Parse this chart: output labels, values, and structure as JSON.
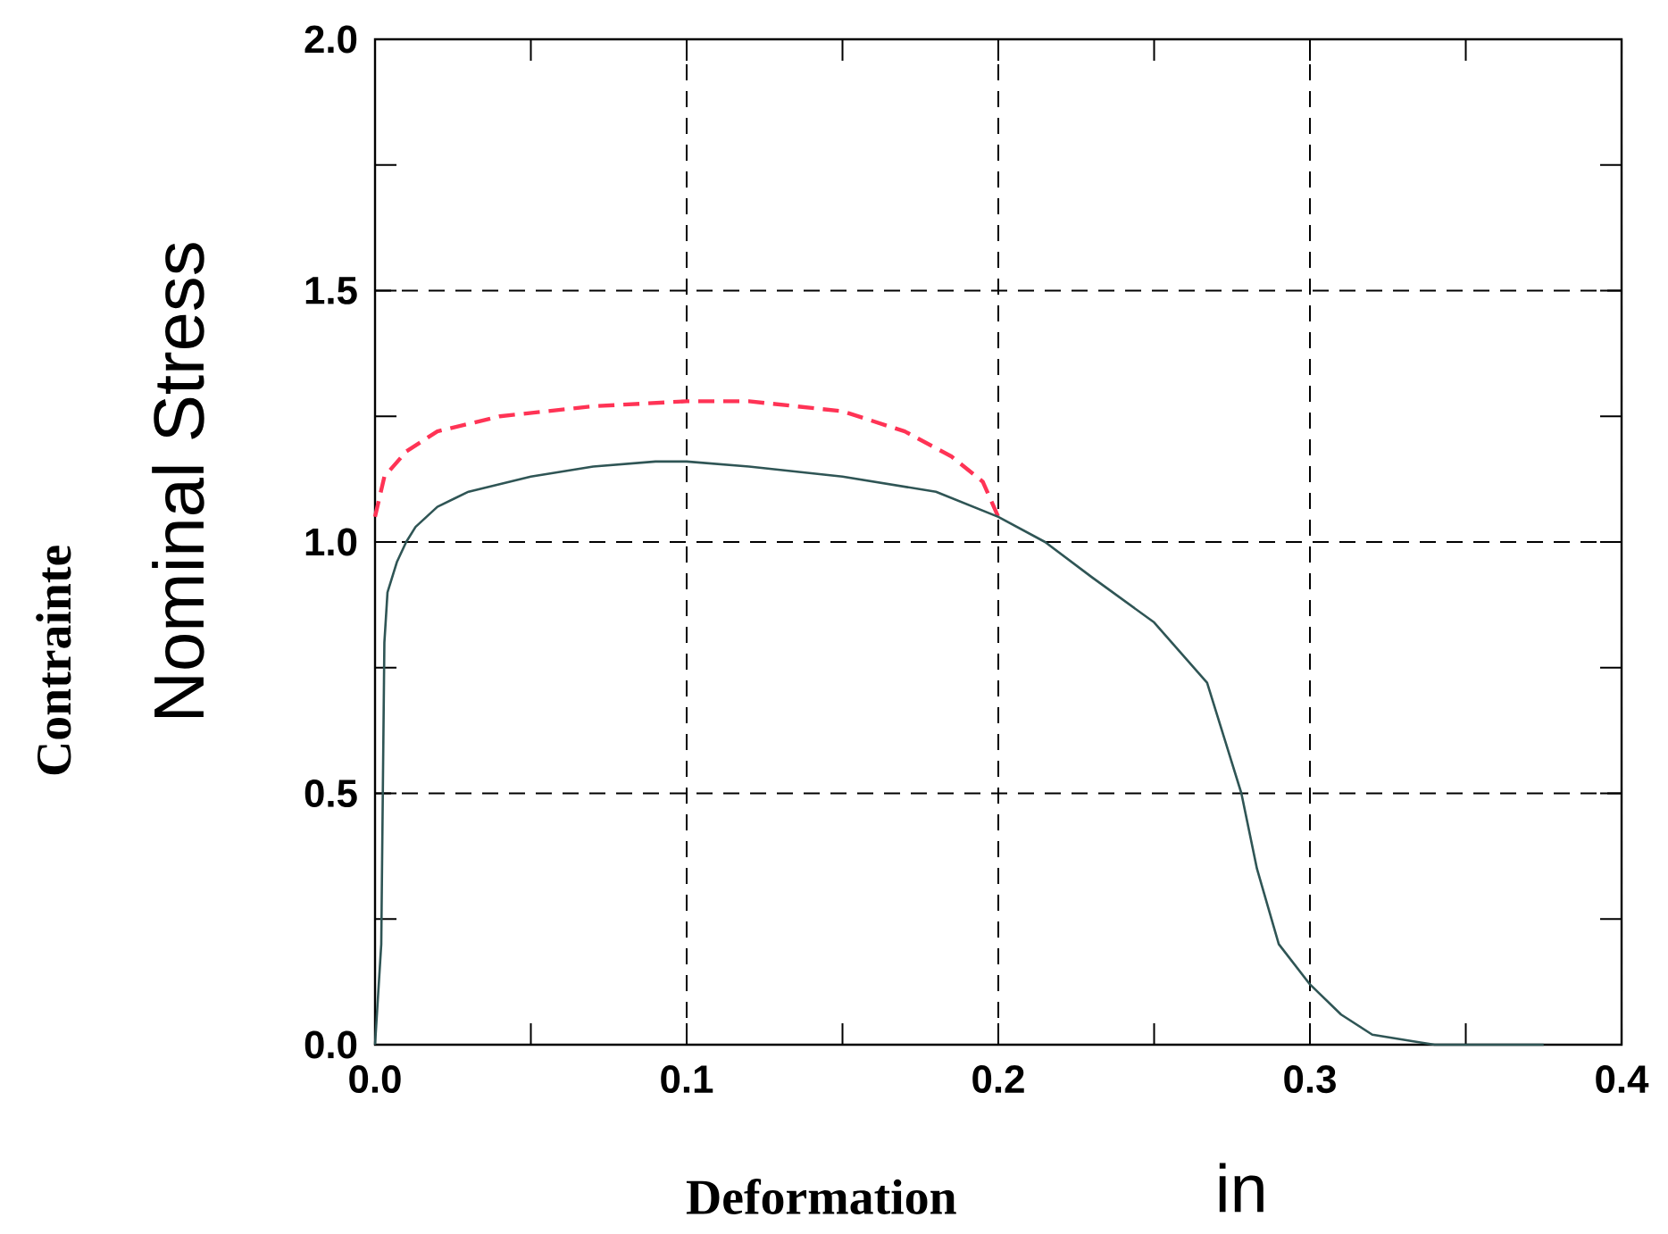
{
  "chart_data": {
    "type": "line",
    "xlabel": "Deformation",
    "ylabel": "Contrainte",
    "annotations": [
      "Nominal Stress",
      "in"
    ],
    "xlim": [
      0,
      0.4
    ],
    "ylim": [
      0,
      2
    ],
    "xticks": [
      {
        "value": 0,
        "label": "0.0"
      },
      {
        "value": 0.05,
        "label": null
      },
      {
        "value": 0.1,
        "label": "0.1"
      },
      {
        "value": 0.15,
        "label": null
      },
      {
        "value": 0.2,
        "label": "0.2"
      },
      {
        "value": 0.25,
        "label": null
      },
      {
        "value": 0.3,
        "label": "0.3"
      },
      {
        "value": 0.35,
        "label": null
      },
      {
        "value": 0.4,
        "label": "0.4"
      }
    ],
    "yticks": [
      {
        "value": 0,
        "label": "0.0"
      },
      {
        "value": 0.25,
        "label": null
      },
      {
        "value": 0.5,
        "label": "0.5"
      },
      {
        "value": 0.75,
        "label": null
      },
      {
        "value": 1,
        "label": "1.0"
      },
      {
        "value": 1.25,
        "label": null
      },
      {
        "value": 1.5,
        "label": "1.5"
      },
      {
        "value": 1.75,
        "label": null
      },
      {
        "value": 2,
        "label": "2.0"
      }
    ],
    "grid": true,
    "marker": "none",
    "series": [
      {
        "color": "#ff3355",
        "line_style": "dashed",
        "x": [
          0,
          0.003,
          0.01,
          0.02,
          0.04,
          0.07,
          0.1,
          0.12,
          0.15,
          0.17,
          0.185,
          0.195,
          0.2
        ],
        "values": [
          1.05,
          1.13,
          1.18,
          1.22,
          1.25,
          1.27,
          1.28,
          1.28,
          1.26,
          1.22,
          1.17,
          1.12,
          1.05
        ]
      },
      {
        "color": "#2f5555",
        "line_style": "solid",
        "x": [
          0,
          0.002,
          0.003,
          0.004,
          0.007,
          0.01,
          0.013,
          0.02,
          0.03,
          0.05,
          0.07,
          0.09,
          0.1,
          0.12,
          0.15,
          0.18,
          0.2,
          0.215,
          0.23,
          0.25,
          0.267,
          0.273,
          0.278,
          0.283,
          0.29,
          0.3,
          0.31,
          0.32,
          0.335,
          0.34,
          0.375
        ],
        "values": [
          0,
          0.2,
          0.8,
          0.9,
          0.96,
          1.0,
          1.03,
          1.07,
          1.1,
          1.13,
          1.15,
          1.16,
          1.16,
          1.15,
          1.13,
          1.1,
          1.05,
          1.0,
          0.93,
          0.84,
          0.72,
          0.6,
          0.5,
          0.35,
          0.2,
          0.12,
          0.06,
          0.02,
          0.005,
          0,
          0
        ]
      }
    ]
  }
}
